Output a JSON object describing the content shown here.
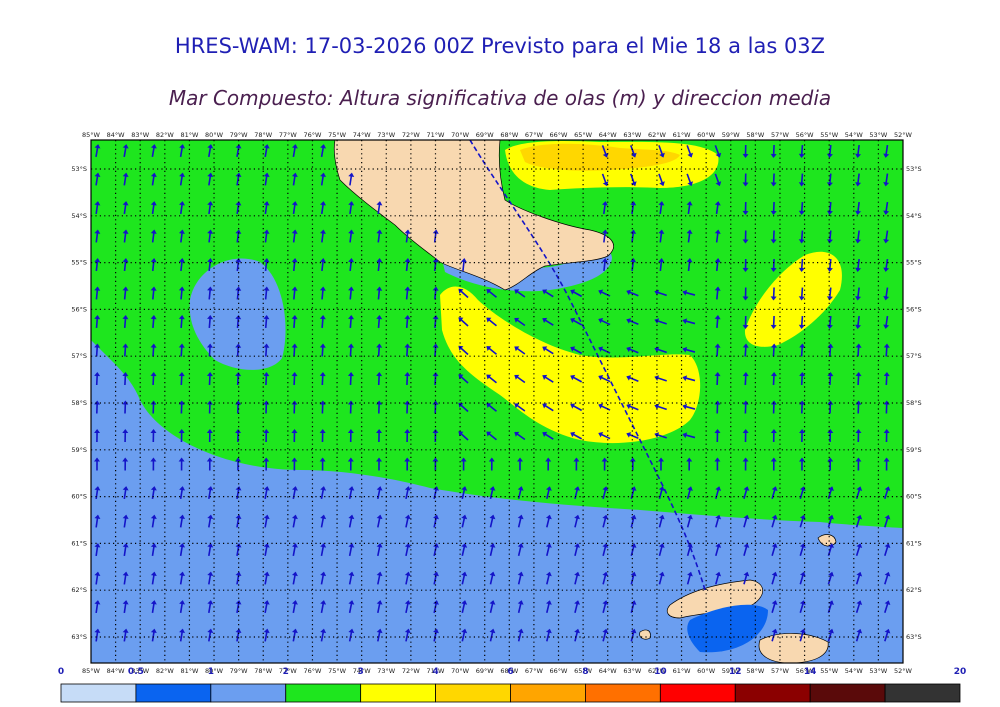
{
  "title": "HRES-WAM: 17-03-2026 00Z Previsto para el Mie 18 a las 03Z",
  "subtitle": "Mar Compuesto: Altura significativa de olas (m) y direccion media",
  "map": {
    "lon_labels_top": [
      "85°W",
      "84°W",
      "83°W",
      "82°W",
      "81°W",
      "80°W",
      "79°W",
      "78°W",
      "77°W",
      "76°W",
      "75°W",
      "74°W",
      "73°W",
      "72°W",
      "71°W",
      "70°W",
      "69°W",
      "68°W",
      "67°W",
      "66°W",
      "65°W",
      "64°W",
      "63°W",
      "62°W",
      "61°W",
      "60°W",
      "59°W",
      "58°W",
      "57°W",
      "56°W",
      "55°W",
      "54°W",
      "53°W",
      "52°W"
    ],
    "lon_labels_bottom": [
      "85°W",
      "84°W",
      "83°W",
      "82°W",
      "81°W",
      "80°W",
      "79°W",
      "78°W",
      "77°W",
      "76°W",
      "75°W",
      "74°W",
      "73°W",
      "72°W",
      "71°W",
      "70°W",
      "69°W",
      "68°W",
      "67°W",
      "66°W",
      "65°W",
      "64°W",
      "63°W",
      "62°W",
      "61°W",
      "60°W",
      "59°W",
      "58°W",
      "57°W",
      "56°W",
      "55°W",
      "54°W",
      "53°W",
      "52°W"
    ],
    "lat_labels": [
      "53°S",
      "54°S",
      "55°S",
      "56°S",
      "57°S",
      "58°S",
      "59°S",
      "60°S",
      "61°S",
      "62°S",
      "63°S"
    ],
    "colors": {
      "land": "#f8d8b0",
      "blue": "#6b9ef0",
      "green": "#1ee61e",
      "yellow": "#ffff00",
      "gold": "#ffd700",
      "deep_blue": "#0a64f0",
      "arrow": "#1414c8",
      "track": "#1414c8"
    }
  },
  "colorbar": {
    "labels": [
      "0",
      "0.5",
      "1",
      "2",
      "3",
      "4",
      "6",
      "8",
      "10",
      "12",
      "14",
      "20"
    ],
    "colors": [
      "#c6dcf7",
      "#0a64f0",
      "#6b9ef0",
      "#1ee61e",
      "#ffff00",
      "#ffd700",
      "#ffa500",
      "#ff7000",
      "#ff0000",
      "#8b0000",
      "#5a0a0a",
      "#333333"
    ]
  }
}
